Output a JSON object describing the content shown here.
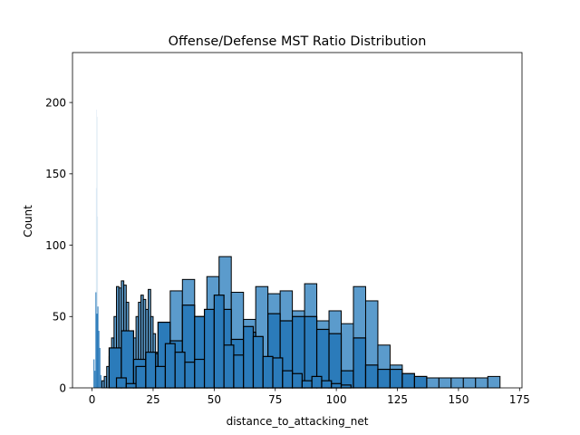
{
  "chart_data": {
    "type": "bar",
    "title": "Offense/Defense MST Ratio Distribution",
    "xlabel": "distance_to_attacking_net",
    "ylabel": "Count",
    "xlim": [
      -8,
      176
    ],
    "ylim": [
      0,
      235
    ],
    "xticks": [
      0,
      25,
      50,
      75,
      100,
      125,
      150,
      175
    ],
    "yticks": [
      0,
      50,
      100,
      150,
      200
    ],
    "grid": false,
    "legend": "none",
    "colors": {
      "light": "#5B9BCC",
      "dark": "#2B7BBA",
      "edge": "#000000",
      "faint": "#C6DCEC"
    },
    "series": [
      {
        "style": "faint",
        "x0": [
          1.6,
          1.8,
          2.0,
          2.2
        ],
        "x1": [
          1.8,
          2.0,
          2.2,
          2.4
        ],
        "values": [
          140,
          195,
          190,
          120
        ]
      },
      {
        "style": "fine",
        "x0": [
          0.6,
          1.0,
          1.4,
          1.8,
          2.2,
          2.6,
          3.0,
          3.4,
          3.8,
          4.2,
          4.6,
          5.0
        ],
        "x1": [
          1.0,
          1.4,
          1.8,
          2.2,
          2.6,
          3.0,
          3.4,
          3.8,
          4.2,
          4.6,
          5.0,
          5.4
        ],
        "values": [
          20,
          12,
          67,
          52,
          57,
          40,
          28,
          9,
          4,
          3,
          2,
          2
        ]
      },
      {
        "style": "light",
        "x0": [
          4,
          5,
          6,
          7,
          8,
          9,
          10,
          11,
          12,
          13,
          14,
          15,
          16,
          17,
          18,
          19,
          20,
          21,
          22,
          23,
          24,
          25,
          26,
          27,
          28
        ],
        "x1": [
          5,
          6,
          7,
          8,
          9,
          10,
          11,
          12,
          13,
          14,
          15,
          16,
          17,
          18,
          19,
          20,
          21,
          22,
          23,
          24,
          25,
          26,
          27,
          28,
          29
        ],
        "values": [
          5,
          8,
          15,
          22,
          35,
          50,
          71,
          70,
          75,
          72,
          60,
          40,
          20,
          35,
          50,
          60,
          65,
          62,
          55,
          69,
          50,
          38,
          25,
          15,
          8
        ]
      },
      {
        "style": "light",
        "x0": [
          32,
          37,
          42,
          47,
          52,
          57,
          62,
          67,
          72,
          77,
          82,
          87,
          92,
          97,
          102,
          107,
          112,
          117,
          122,
          127,
          132,
          137,
          142,
          147,
          152,
          157,
          162
        ],
        "x1": [
          37,
          42,
          47,
          52,
          57,
          62,
          67,
          72,
          77,
          82,
          87,
          92,
          97,
          102,
          107,
          112,
          117,
          122,
          127,
          132,
          137,
          142,
          147,
          152,
          157,
          162,
          167
        ],
        "values": [
          68,
          76,
          50,
          78,
          92,
          67,
          48,
          71,
          66,
          68,
          54,
          73,
          47,
          54,
          45,
          71,
          61,
          30,
          16,
          10,
          7,
          7,
          7,
          7,
          7,
          7,
          8
        ]
      },
      {
        "style": "dark",
        "x0": [
          7,
          12,
          17,
          22,
          27,
          32,
          37,
          42,
          47,
          52,
          57,
          62,
          67,
          72,
          77,
          82,
          87,
          92,
          97,
          102,
          107,
          112,
          117,
          122,
          127,
          132
        ],
        "x1": [
          12,
          17,
          22,
          27,
          32,
          37,
          42,
          47,
          52,
          57,
          62,
          67,
          72,
          77,
          82,
          87,
          92,
          97,
          102,
          107,
          112,
          117,
          122,
          127,
          132,
          137
        ],
        "values": [
          28,
          40,
          20,
          24,
          46,
          33,
          58,
          50,
          48,
          55,
          34,
          39,
          16,
          52,
          47,
          50,
          50,
          41,
          38,
          12,
          35,
          16,
          13,
          13,
          10,
          8
        ]
      },
      {
        "style": "dark",
        "x0": [
          10,
          14,
          18,
          22,
          26,
          30,
          34,
          38,
          42,
          46,
          50,
          54,
          58,
          62,
          66,
          70,
          74,
          78,
          82,
          86,
          90,
          94,
          98,
          102
        ],
        "x1": [
          14,
          18,
          22,
          26,
          30,
          34,
          38,
          42,
          46,
          50,
          54,
          58,
          62,
          66,
          70,
          74,
          78,
          82,
          86,
          90,
          94,
          98,
          102,
          106
        ],
        "values": [
          7,
          3,
          15,
          25,
          15,
          31,
          25,
          18,
          20,
          55,
          65,
          30,
          23,
          43,
          36,
          22,
          21,
          12,
          10,
          5,
          8,
          5,
          3,
          2
        ]
      }
    ]
  }
}
